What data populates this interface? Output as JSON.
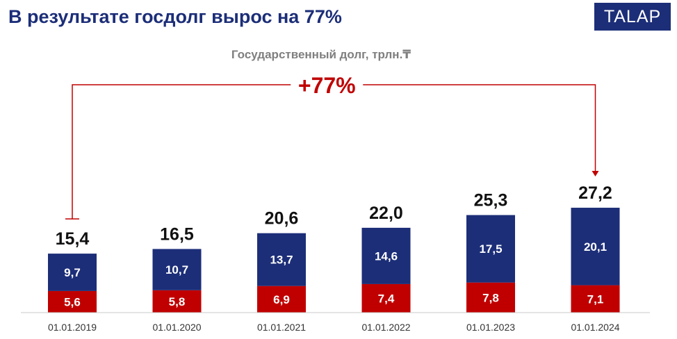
{
  "slide": {
    "title": "В результате госдолг вырос на 77%",
    "logo": "TALAP"
  },
  "colors": {
    "title": "#1c2e78",
    "logo_bg": "#1c2e78",
    "series_top": "#1c2e78",
    "series_bottom": "#c00000",
    "annotation": "#c00000",
    "subtitle": "#7f7f7f"
  },
  "chart_data": {
    "type": "bar",
    "stacked": true,
    "title": "Государственный долг, трлн.₸",
    "xlabel": "",
    "ylabel": "",
    "grid": false,
    "legend": "none",
    "categories": [
      "01.01.2019",
      "01.01.2020",
      "01.01.2021",
      "01.01.2022",
      "01.01.2023",
      "01.01.2024"
    ],
    "series": [
      {
        "values": [
          5.6,
          5.8,
          6.9,
          7.4,
          7.8,
          7.1
        ],
        "labels": [
          "5,6",
          "5,8",
          "6,9",
          "7,4",
          "7,8",
          "7,1"
        ],
        "color": "#c00000"
      },
      {
        "values": [
          9.7,
          10.7,
          13.7,
          14.6,
          17.5,
          20.1
        ],
        "labels": [
          "9,7",
          "10,7",
          "13,7",
          "14,6",
          "17,5",
          "20,1"
        ],
        "color": "#1c2e78"
      }
    ],
    "totals": [
      15.4,
      16.5,
      20.6,
      22.0,
      25.3,
      27.2
    ],
    "total_labels": [
      "15,4",
      "16,5",
      "20,6",
      "22,0",
      "25,3",
      "27,2"
    ],
    "annotation": {
      "text": "+77%",
      "from": "01.01.2019",
      "to": "01.01.2024"
    }
  }
}
